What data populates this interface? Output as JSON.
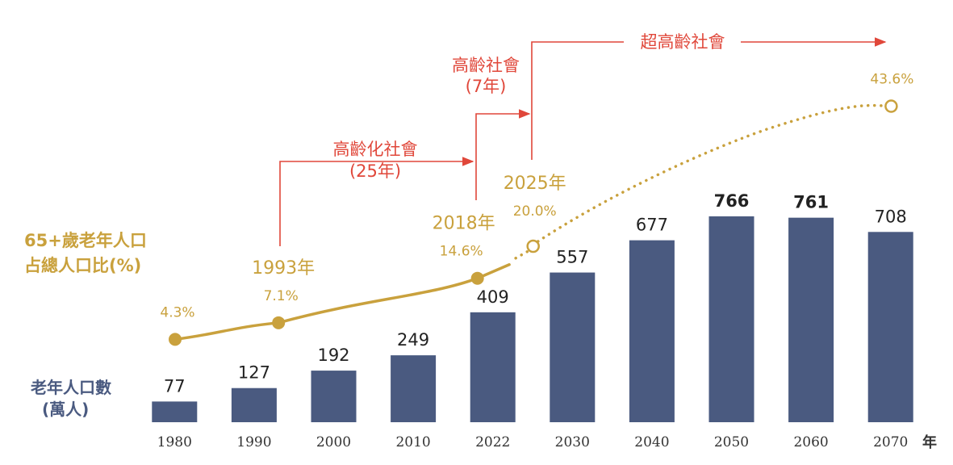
{
  "chart_data": {
    "type": "bar",
    "categories": [
      "1980",
      "1990",
      "2000",
      "2010",
      "2022",
      "2030",
      "2040",
      "2050",
      "2060",
      "2070"
    ],
    "x_unit": "年",
    "bar_series": {
      "name": "老年人口數 (萬人)",
      "name_lines": [
        "老年人口數",
        "(萬人)"
      ],
      "values": [
        77,
        127,
        192,
        249,
        409,
        557,
        677,
        766,
        761,
        708
      ],
      "labels": [
        "77",
        "127",
        "192",
        "249",
        "409",
        "557",
        "677",
        "766",
        "761",
        "708"
      ],
      "color": "#4a5a80"
    },
    "line_series": {
      "name": "65+歲老年人口占總人口比(%)",
      "name_lines": [
        "65+歲老年人口",
        "占總人口比(%)"
      ],
      "color": "#c9a13d",
      "points": [
        {
          "year": 1980,
          "value": 4.3,
          "label": "4.3%",
          "marker": "filled"
        },
        {
          "year": 1993,
          "value": 7.1,
          "label": "7.1%",
          "marker": "filled",
          "year_label": "1993年"
        },
        {
          "year": 2018,
          "value": 14.6,
          "label": "14.6%",
          "marker": "filled",
          "year_label": "2018年"
        },
        {
          "year": 2025,
          "value": 20.0,
          "label": "20.0%",
          "marker": "hollow",
          "year_label": "2025年"
        },
        {
          "year": 2070,
          "value": 43.6,
          "label": "43.6%",
          "marker": "hollow"
        }
      ],
      "solid_until_year": 2022
    },
    "annotations": {
      "stage1": [
        "高齡化社會",
        "(25年)"
      ],
      "stage2": [
        "高齡社會",
        "(7年)"
      ],
      "stage3": "超高齡社會"
    },
    "ylim_bars": [
      0,
      800
    ]
  }
}
